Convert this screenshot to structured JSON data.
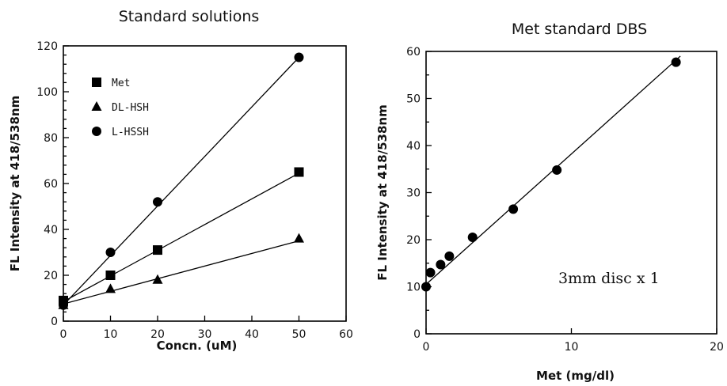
{
  "chart_data": [
    {
      "type": "scatter",
      "title": "Standard solutions",
      "xlabel": "Concn. (uM)",
      "ylabel": "FL Intensity at 418/538nm",
      "xlim": [
        0,
        60
      ],
      "ylim": [
        0,
        120
      ],
      "x_ticks": [
        0,
        10,
        20,
        30,
        40,
        50,
        60
      ],
      "y_ticks": [
        0,
        20,
        40,
        60,
        80,
        100,
        120
      ],
      "legend_position": "top-left",
      "series": [
        {
          "name": "Met",
          "marker": "square",
          "x": [
            0,
            10,
            20,
            50
          ],
          "y": [
            9,
            20,
            31,
            65
          ],
          "fit": [
            [
              0,
              8.5
            ],
            [
              50,
              64.5
            ]
          ]
        },
        {
          "name": "DL-HSH",
          "marker": "triangle",
          "x": [
            0,
            10,
            20,
            50
          ],
          "y": [
            7,
            14,
            18,
            36
          ],
          "fit": [
            [
              0,
              7.5
            ],
            [
              50,
              35
            ]
          ]
        },
        {
          "name": "L-HSSH",
          "marker": "circle",
          "x": [
            0,
            10,
            20,
            50
          ],
          "y": [
            7,
            30,
            52,
            115
          ],
          "fit": [
            [
              0,
              7
            ],
            [
              50,
              115
            ]
          ]
        }
      ]
    },
    {
      "type": "scatter",
      "title": "Met standard DBS",
      "xlabel": "Met (mg/dl)",
      "ylabel": "FL Intensity at 418/538nm",
      "xlim": [
        0,
        20
      ],
      "ylim": [
        0,
        60
      ],
      "x_ticks": [
        0,
        10,
        20
      ],
      "y_ticks": [
        0,
        10,
        20,
        30,
        40,
        50,
        60
      ],
      "annotation": "3mm disc x 1",
      "series": [
        {
          "marker": "circle",
          "x": [
            0,
            0.3,
            1,
            1.6,
            3.2,
            6,
            9,
            17.2
          ],
          "y": [
            10,
            13,
            14.7,
            16.5,
            20.5,
            26.5,
            34.8,
            57.7
          ],
          "fit": [
            [
              0,
              10.5
            ],
            [
              17.5,
              59
            ]
          ]
        }
      ]
    }
  ]
}
